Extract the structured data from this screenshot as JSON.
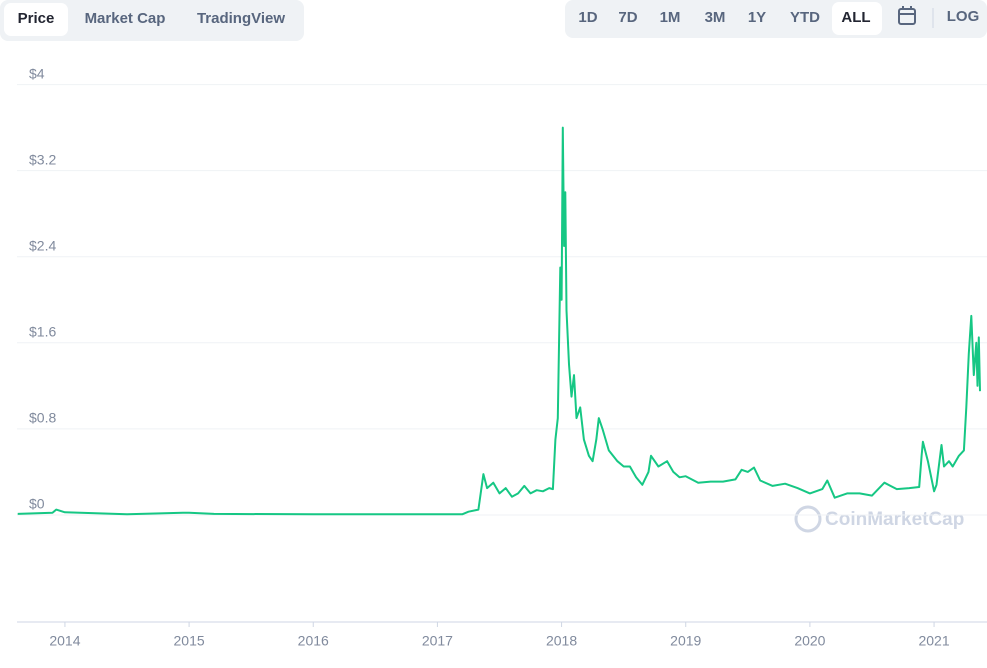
{
  "tabs": [
    "Price",
    "Market Cap",
    "TradingView"
  ],
  "ranges": [
    "1D",
    "7D",
    "1M",
    "3M",
    "1Y",
    "YTD",
    "ALL"
  ],
  "log_label": "LOG",
  "watermark": "CoinMarketCap",
  "chart_data": {
    "type": "line",
    "color": "#16c784",
    "grid": true,
    "xlim": [
      2013.614,
      2021.37
    ],
    "xticks": [
      2014,
      2015,
      2016,
      2017,
      2018,
      2019,
      2020,
      2021
    ],
    "ylim": [
      -0.995,
      4.21
    ],
    "yticks": [
      {
        "value": 0,
        "label": "$0"
      },
      {
        "value": 0.8,
        "label": "$0.8"
      },
      {
        "value": 1.6,
        "label": "$1.6"
      },
      {
        "value": 2.4,
        "label": "$2.4"
      },
      {
        "value": 3.2,
        "label": "$3.2"
      },
      {
        "value": 4,
        "label": "$4"
      }
    ],
    "x": [
      2013.62,
      2013.9,
      2013.93,
      2014.0,
      2014.5,
      2014.95,
      2015.0,
      2015.2,
      2016.0,
      2017.0,
      2017.2,
      2017.25,
      2017.33,
      2017.37,
      2017.4,
      2017.45,
      2017.5,
      2017.55,
      2017.6,
      2017.65,
      2017.7,
      2017.75,
      2017.8,
      2017.85,
      2017.9,
      2017.93,
      2017.95,
      2017.97,
      2017.99,
      2018.0,
      2018.01,
      2018.02,
      2018.03,
      2018.04,
      2018.06,
      2018.08,
      2018.1,
      2018.12,
      2018.15,
      2018.18,
      2018.22,
      2018.25,
      2018.28,
      2018.3,
      2018.33,
      2018.38,
      2018.45,
      2018.5,
      2018.55,
      2018.6,
      2018.65,
      2018.7,
      2018.72,
      2018.78,
      2018.85,
      2018.9,
      2018.95,
      2019.0,
      2019.1,
      2019.2,
      2019.3,
      2019.4,
      2019.45,
      2019.5,
      2019.55,
      2019.6,
      2019.7,
      2019.8,
      2019.9,
      2020.0,
      2020.1,
      2020.14,
      2020.2,
      2020.25,
      2020.3,
      2020.4,
      2020.5,
      2020.6,
      2020.7,
      2020.8,
      2020.88,
      2020.9,
      2020.91,
      2020.95,
      2021.0,
      2021.02,
      2021.06,
      2021.08,
      2021.12,
      2021.15,
      2021.2,
      2021.24,
      2021.26,
      2021.28,
      2021.3,
      2021.32,
      2021.34,
      2021.35,
      2021.36,
      2021.37
    ],
    "values": [
      0.01,
      0.02,
      0.05,
      0.025,
      0.006,
      0.02,
      0.02,
      0.01,
      0.006,
      0.006,
      0.006,
      0.03,
      0.05,
      0.38,
      0.25,
      0.3,
      0.2,
      0.25,
      0.17,
      0.2,
      0.27,
      0.2,
      0.23,
      0.22,
      0.25,
      0.24,
      0.7,
      0.9,
      2.3,
      2.0,
      3.6,
      2.5,
      3.0,
      1.9,
      1.4,
      1.1,
      1.3,
      0.9,
      1.0,
      0.7,
      0.55,
      0.5,
      0.7,
      0.9,
      0.8,
      0.6,
      0.5,
      0.45,
      0.45,
      0.35,
      0.28,
      0.4,
      0.55,
      0.45,
      0.5,
      0.4,
      0.35,
      0.36,
      0.3,
      0.31,
      0.31,
      0.33,
      0.42,
      0.4,
      0.44,
      0.32,
      0.27,
      0.29,
      0.25,
      0.2,
      0.24,
      0.32,
      0.16,
      0.18,
      0.2,
      0.2,
      0.18,
      0.3,
      0.24,
      0.25,
      0.26,
      0.55,
      0.68,
      0.5,
      0.22,
      0.28,
      0.65,
      0.45,
      0.5,
      0.45,
      0.55,
      0.6,
      1.0,
      1.5,
      1.85,
      1.3,
      1.6,
      1.2,
      1.65,
      1.15
    ]
  }
}
